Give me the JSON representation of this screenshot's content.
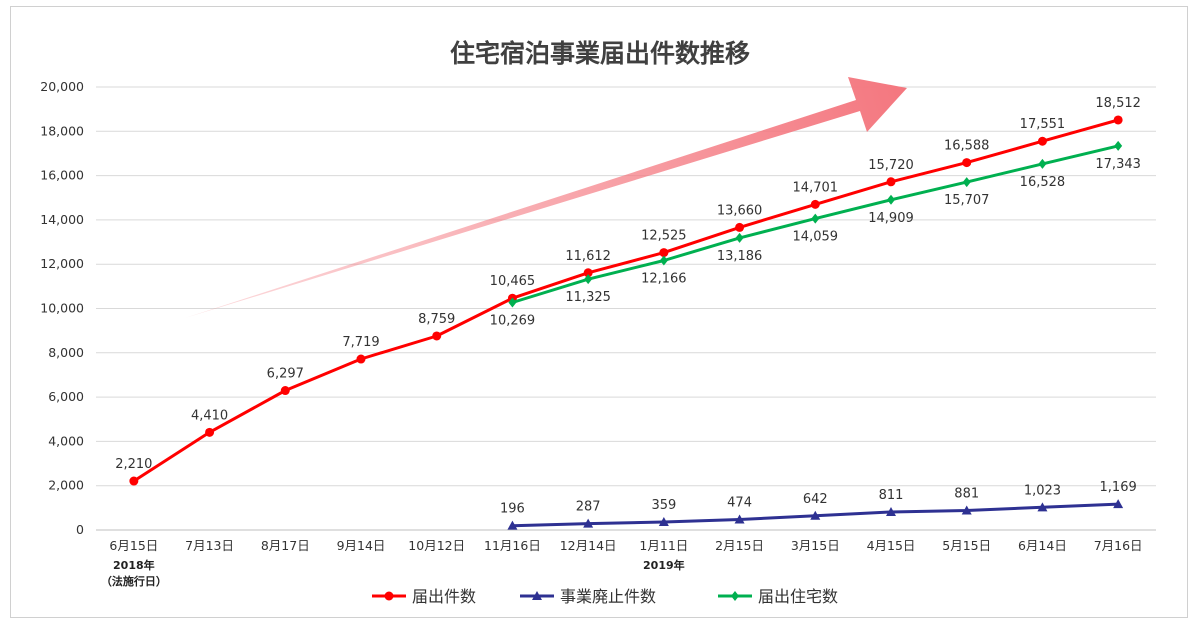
{
  "chart_data": {
    "type": "line",
    "title": "住宅宿泊事業届出件数推移",
    "categories": [
      "6月15日",
      "7月13日",
      "8月17日",
      "9月14日",
      "10月12日",
      "11月16日",
      "12月14日",
      "1月11日",
      "2月15日",
      "3月15日",
      "4月15日",
      "5月15日",
      "6月14日",
      "7月16日"
    ],
    "sub_labels": [
      {
        "index": 0,
        "lines": [
          "2018年",
          "（法施行日）"
        ]
      },
      {
        "index": 7,
        "lines": [
          "2019年"
        ]
      }
    ],
    "ylim": [
      0,
      20000
    ],
    "yticks": [
      0,
      2000,
      4000,
      6000,
      8000,
      10000,
      12000,
      14000,
      16000,
      18000,
      20000
    ],
    "ytick_labels": [
      "0",
      "2,000",
      "4,000",
      "6,000",
      "8,000",
      "10,000",
      "12,000",
      "14,000",
      "16,000",
      "18,000",
      "20,000"
    ],
    "grid": true,
    "legend_position": "bottom",
    "series": [
      {
        "name": "届出件数",
        "color": "#ff0000",
        "marker": "circle",
        "values": [
          2210,
          4410,
          6297,
          7719,
          8759,
          10465,
          11612,
          12525,
          13660,
          14701,
          15720,
          16588,
          17551,
          18512
        ],
        "labels": [
          "2,210",
          "4,410",
          "6,297",
          "7,719",
          "8,759",
          "10,465",
          "11,612",
          "12,525",
          "13,660",
          "14,701",
          "15,720",
          "16,588",
          "17,551",
          "18,512"
        ]
      },
      {
        "name": "事業廃止件数",
        "color": "#2e3192",
        "marker": "triangle",
        "values": [
          null,
          null,
          null,
          null,
          null,
          196,
          287,
          359,
          474,
          642,
          811,
          881,
          1023,
          1169
        ],
        "labels": [
          null,
          null,
          null,
          null,
          null,
          "196",
          "287",
          "359",
          "474",
          "642",
          "811",
          "881",
          "1,023",
          "1,169"
        ]
      },
      {
        "name": "届出住宅数",
        "color": "#00b050",
        "marker": "diamond",
        "values": [
          null,
          null,
          null,
          null,
          null,
          10269,
          11325,
          12166,
          13186,
          14059,
          14909,
          15707,
          16528,
          17343
        ],
        "labels": [
          null,
          null,
          null,
          null,
          null,
          "10,269",
          "11,325",
          "12,166",
          "13,186",
          "14,059",
          "14,909",
          "15,707",
          "16,528",
          "17,343"
        ]
      }
    ],
    "annotation_arrow_color": "#f4777f"
  }
}
